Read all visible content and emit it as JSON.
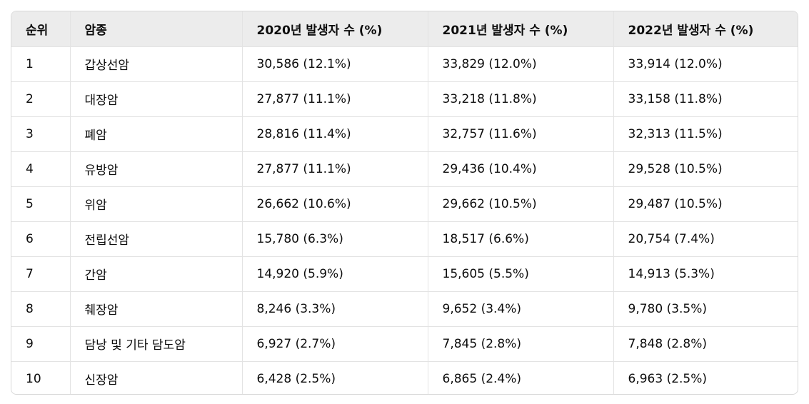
{
  "table": {
    "headers": [
      "순위",
      "암종",
      "2020년 발생자 수 (%)",
      "2021년 발생자 수 (%)",
      "2022년 발생자 수 (%)"
    ],
    "rows": [
      [
        "1",
        "갑상선암",
        "30,586 (12.1%)",
        "33,829 (12.0%)",
        "33,914 (12.0%)"
      ],
      [
        "2",
        "대장암",
        "27,877 (11.1%)",
        "33,218 (11.8%)",
        "33,158 (11.8%)"
      ],
      [
        "3",
        "폐암",
        "28,816 (11.4%)",
        "32,757 (11.6%)",
        "32,313 (11.5%)"
      ],
      [
        "4",
        "유방암",
        "27,877 (11.1%)",
        "29,436 (10.4%)",
        "29,528 (10.5%)"
      ],
      [
        "5",
        "위암",
        "26,662 (10.6%)",
        "29,662 (10.5%)",
        "29,487 (10.5%)"
      ],
      [
        "6",
        "전립선암",
        "15,780 (6.3%)",
        "18,517 (6.6%)",
        "20,754 (7.4%)"
      ],
      [
        "7",
        "간암",
        "14,920 (5.9%)",
        "15,605 (5.5%)",
        "14,913 (5.3%)"
      ],
      [
        "8",
        "췌장암",
        "8,246 (3.3%)",
        "9,652 (3.4%)",
        "9,780 (3.5%)"
      ],
      [
        "9",
        "담낭 및 기타 담도암",
        "6,927 (2.7%)",
        "7,845 (2.8%)",
        "7,848 (2.8%)"
      ],
      [
        "10",
        "신장암",
        "6,428 (2.5%)",
        "6,865 (2.4%)",
        "6,963 (2.5%)"
      ]
    ]
  }
}
